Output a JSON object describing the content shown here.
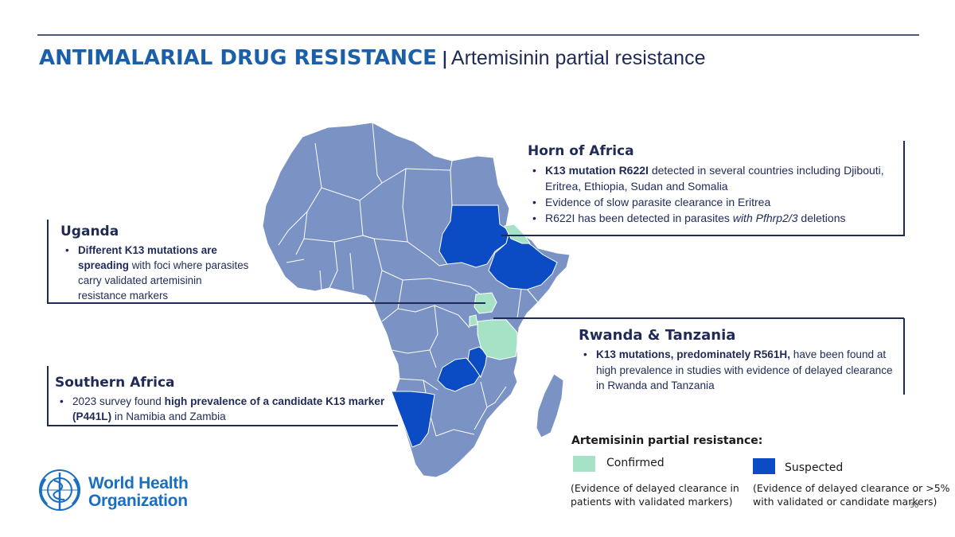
{
  "header": {
    "title_main": "ANTIMALARIAL DRUG RESISTANCE",
    "title_sep": "|",
    "title_sub": "Artemisinin partial resistance"
  },
  "colors": {
    "title": "#1a5fa8",
    "navy": "#1f2a57",
    "land": "#7b93c4",
    "border": "#ffffff",
    "confirmed": "#a6e3c6",
    "suspected": "#0b4bc3",
    "who_blue": "#1a6fc0"
  },
  "map": {
    "confirmed_regions": [
      "Eritrea",
      "Uganda",
      "Rwanda",
      "Tanzania"
    ],
    "suspected_regions": [
      "Sudan",
      "Ethiopia",
      "Zambia",
      "Malawi",
      "Namibia"
    ]
  },
  "horn": {
    "heading": "Horn of Africa",
    "b1_bold": "K13 mutation R622I",
    "b1_rest": " detected in several countries including Djibouti, Eritrea, Ethiopia, Sudan and Somalia",
    "b2": "Evidence of slow parasite clearance in Eritrea",
    "b3_a": "R622I has been detected in parasites ",
    "b3_italic": "with Pfhrp2/3",
    "b3_b": " deletions"
  },
  "uganda": {
    "heading": "Uganda",
    "b1_bold": "Different K13 mutations are spreading",
    "b1_rest": " with foci where parasites carry validated artemisinin resistance markers"
  },
  "rwanda": {
    "heading": "Rwanda & Tanzania",
    "b1_bold": "K13 mutations, predominately R561H,",
    "b1_rest": " have been found at high prevalence in studies with evidence of delayed clearance in Rwanda and Tanzania"
  },
  "southern": {
    "heading": "Southern Africa",
    "b1_a": "2023 survey found ",
    "b1_bold": " high prevalence of a candidate K13 marker (P441L)",
    "b1_rest": " in Namibia and Zambia"
  },
  "legend": {
    "title": "Artemisinin partial resistance:",
    "confirmed_label": "Confirmed",
    "confirmed_note_1": "(Evidence of delayed clearance in",
    "confirmed_note_2": "patients with validated markers)",
    "suspected_label": "Suspected",
    "suspected_note_1": "(Evidence of delayed clearance or >5%",
    "suspected_note_2": "with validated or candidate markers)"
  },
  "logo": {
    "line1": "World Health",
    "line2": "Organization",
    "icon": "who-emblem-icon"
  },
  "page_number": "30"
}
